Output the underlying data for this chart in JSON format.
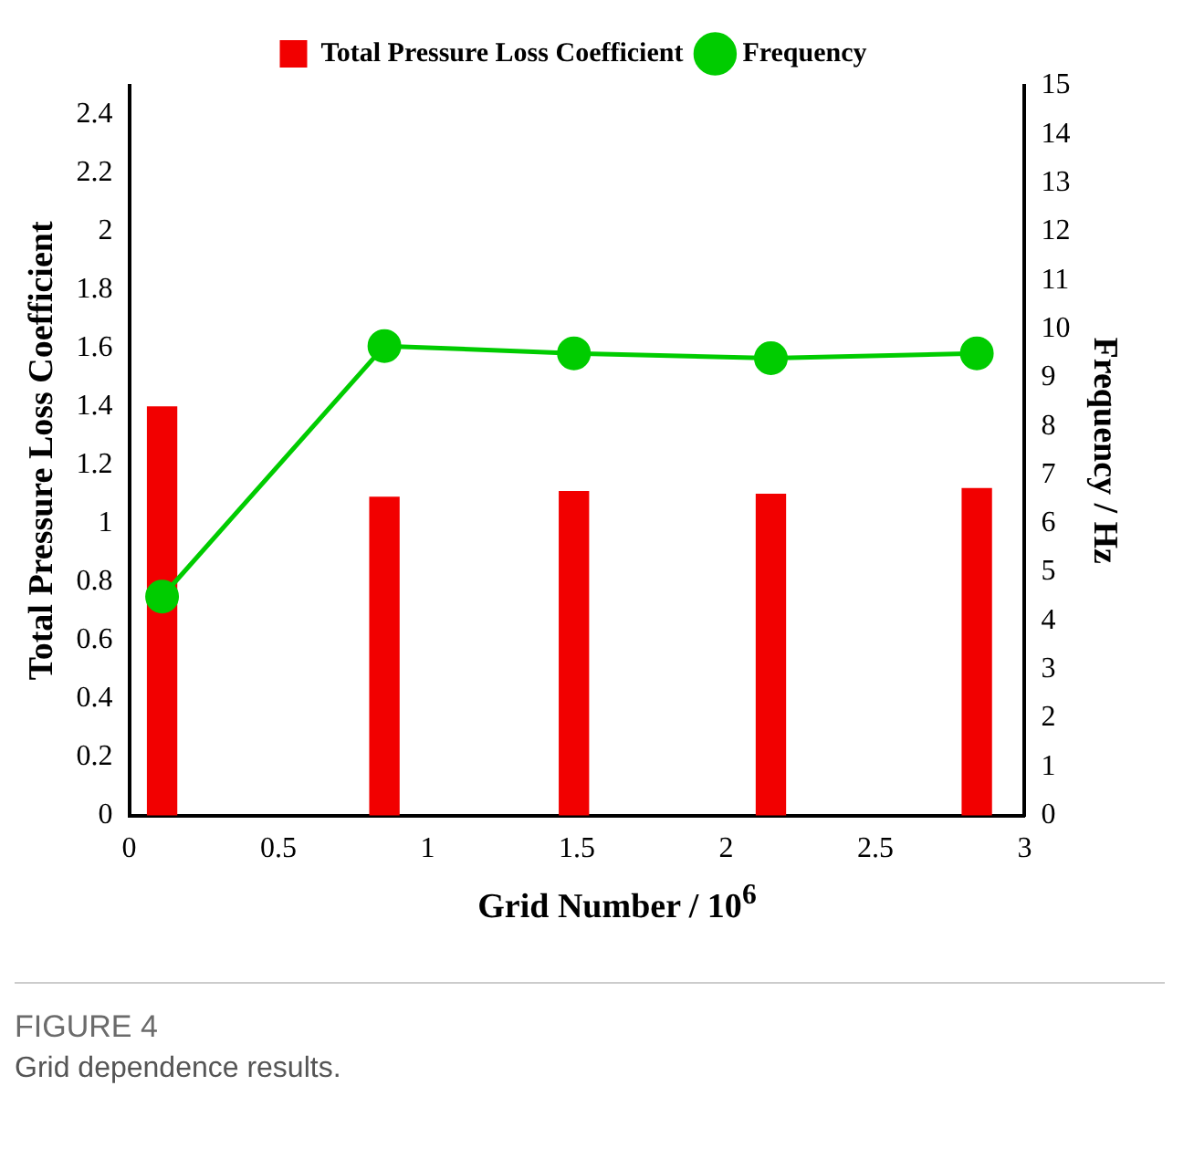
{
  "chart_data": {
    "type": "bar",
    "xlabel": "Grid Number / 10$^{6}$",
    "ylabel": "Total Pressure Loss Coefficient",
    "y2label": "Frequency / Hz",
    "x": [
      0.11,
      0.855,
      1.49,
      2.15,
      2.84
    ],
    "series": [
      {
        "name": "Total Pressure Loss Coefficient",
        "color": "#f20000",
        "values": [
          1.4,
          1.09,
          1.11,
          1.1,
          1.12
        ]
      },
      {
        "name": "Frequency",
        "type": "line",
        "axis": "y2",
        "color": "#00cc00",
        "marker": "circle",
        "values": [
          4.5,
          9.65,
          9.5,
          9.4,
          9.5
        ]
      }
    ],
    "xlim": [
      0,
      3
    ],
    "xticks": [
      0,
      0.5,
      1,
      1.5,
      2,
      2.5,
      3
    ],
    "ylim": [
      0,
      2.5
    ],
    "yticks": [
      0,
      0.2,
      0.4,
      0.6,
      0.8,
      1,
      1.2,
      1.4,
      1.6,
      1.8,
      2,
      2.2,
      2.4
    ],
    "y2lim": [
      0,
      15
    ],
    "y2ticks": [
      0,
      1,
      2,
      3,
      4,
      5,
      6,
      7,
      8,
      9,
      10,
      11,
      12,
      13,
      14,
      15
    ],
    "legend": "top",
    "grid": false,
    "annotations": [
      "FIGURE 4",
      "Grid dependence results."
    ]
  }
}
